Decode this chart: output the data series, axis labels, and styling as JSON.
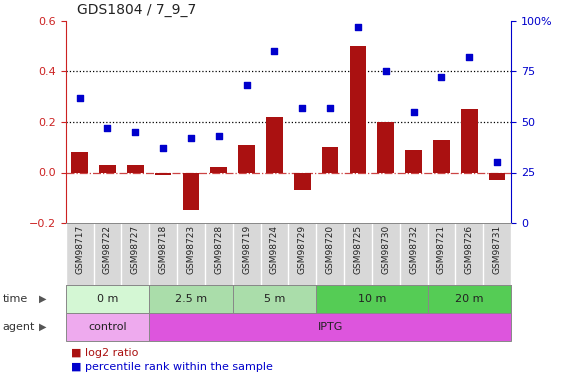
{
  "title": "GDS1804 / 7_9_7",
  "samples": [
    "GSM98717",
    "GSM98722",
    "GSM98727",
    "GSM98718",
    "GSM98723",
    "GSM98728",
    "GSM98719",
    "GSM98724",
    "GSM98729",
    "GSM98720",
    "GSM98725",
    "GSM98730",
    "GSM98732",
    "GSM98721",
    "GSM98726",
    "GSM98731"
  ],
  "log2_ratio": [
    0.08,
    0.03,
    0.03,
    -0.01,
    -0.15,
    0.02,
    0.11,
    0.22,
    -0.07,
    0.1,
    0.5,
    0.2,
    0.09,
    0.13,
    0.25,
    -0.03
  ],
  "percentile_rank": [
    62,
    47,
    45,
    37,
    42,
    43,
    68,
    85,
    57,
    57,
    97,
    75,
    55,
    72,
    82,
    30
  ],
  "bar_color": "#aa1111",
  "dot_color": "#0000cc",
  "time_groups": [
    {
      "label": "0 m",
      "start": 0,
      "end": 3,
      "color": "#d4f7d4"
    },
    {
      "label": "2.5 m",
      "start": 3,
      "end": 6,
      "color": "#aaddaa"
    },
    {
      "label": "5 m",
      "start": 6,
      "end": 9,
      "color": "#aaddaa"
    },
    {
      "label": "10 m",
      "start": 9,
      "end": 13,
      "color": "#55cc55"
    },
    {
      "label": "20 m",
      "start": 13,
      "end": 16,
      "color": "#55cc55"
    }
  ],
  "agent_groups": [
    {
      "label": "control",
      "start": 0,
      "end": 3,
      "color": "#eeaaee"
    },
    {
      "label": "IPTG",
      "start": 3,
      "end": 16,
      "color": "#dd55dd"
    }
  ],
  "ylim_left": [
    -0.2,
    0.6
  ],
  "ylim_right": [
    0,
    100
  ],
  "yticks_left": [
    -0.2,
    0.0,
    0.2,
    0.4,
    0.6
  ],
  "yticks_right": [
    0,
    25,
    50,
    75,
    100
  ],
  "ytick_labels_right": [
    "0",
    "25",
    "50",
    "75",
    "100%"
  ],
  "hline_zero_color": "#cc4444",
  "hline_zero_style": "dashdot",
  "hline_dot_color": "#000000",
  "hline_dot_style": "dotted",
  "left_axis_color": "#cc2222",
  "right_axis_color": "#0000cc",
  "sample_bg_color": "#d8d8d8",
  "bg_color": "#ffffff",
  "fig_width": 5.71,
  "fig_height": 3.75,
  "dpi": 100
}
